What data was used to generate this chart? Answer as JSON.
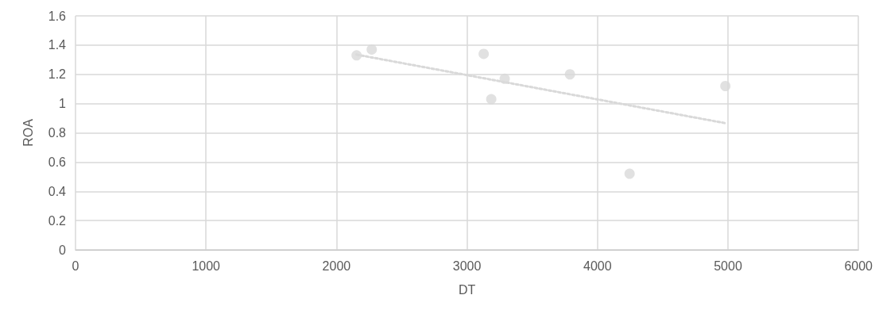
{
  "chart_data": {
    "type": "scatter",
    "xlabel": "DT",
    "ylabel": "ROA",
    "series": [
      {
        "color": "#d9d9d9",
        "x": [
          2154,
          2270,
          3128,
          3289,
          3186,
          3789,
          4246,
          4980
        ],
        "values": [
          1.33,
          1.37,
          1.34,
          1.17,
          1.03,
          1.2,
          0.52,
          1.12
        ],
        "marker": "circle"
      },
      {
        "type": "line",
        "color": "#d9d9d9",
        "x": [
          2154,
          4980
        ],
        "values": [
          1.335,
          0.866
        ],
        "marker": "none",
        "line_style": "dotted"
      }
    ],
    "xlim": [
      0,
      6000
    ],
    "xticks": [
      0,
      1000,
      2000,
      3000,
      4000,
      5000,
      6000
    ],
    "ylim": [
      0,
      1.6
    ],
    "yticks": [
      0,
      0.2,
      0.4,
      0.6,
      0.8,
      1,
      1.2,
      1.4,
      1.6
    ],
    "grid": true
  }
}
